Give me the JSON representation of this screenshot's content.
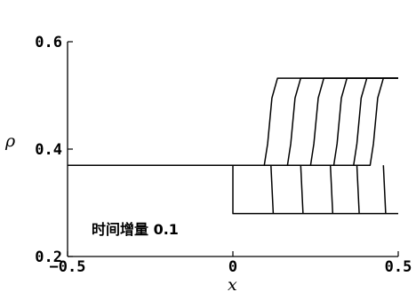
{
  "chart_data": {
    "type": "line",
    "title": "",
    "xlabel": "x",
    "ylabel": "ρ",
    "xlim": [
      -0.5,
      0.5
    ],
    "ylim": [
      0.2,
      0.6
    ],
    "x_ticks": [
      {
        "value": -0.5,
        "label": "−0.5"
      },
      {
        "value": 0,
        "label": "0"
      },
      {
        "value": 0.5,
        "label": "0.5"
      }
    ],
    "y_ticks": [
      {
        "value": 0.2,
        "label": "0.2"
      },
      {
        "value": 0.4,
        "label": "0.4"
      },
      {
        "value": 0.6,
        "label": "0.6"
      }
    ],
    "grid": false,
    "annotation": "时间增量 0.1",
    "series": [
      {
        "points": [
          [
            -0.5,
            0.37
          ],
          [
            0,
            0.37
          ],
          [
            0,
            0.28
          ],
          [
            0.5,
            0.28
          ]
        ]
      },
      {
        "points": [
          [
            -0.5,
            0.37
          ],
          [
            0.095,
            0.37
          ],
          [
            0.105,
            0.41
          ],
          [
            0.118,
            0.495
          ],
          [
            0.135,
            0.532
          ],
          [
            0.5,
            0.532
          ]
        ],
        "lower_front": [
          [
            0.115,
            0.37
          ],
          [
            0.122,
            0.28
          ]
        ]
      },
      {
        "points": [
          [
            -0.5,
            0.37
          ],
          [
            0.165,
            0.37
          ],
          [
            0.175,
            0.41
          ],
          [
            0.188,
            0.495
          ],
          [
            0.205,
            0.532
          ],
          [
            0.5,
            0.532
          ]
        ],
        "lower_front": [
          [
            0.205,
            0.37
          ],
          [
            0.212,
            0.28
          ]
        ]
      },
      {
        "points": [
          [
            -0.5,
            0.37
          ],
          [
            0.235,
            0.37
          ],
          [
            0.245,
            0.41
          ],
          [
            0.258,
            0.495
          ],
          [
            0.275,
            0.532
          ],
          [
            0.5,
            0.532
          ]
        ],
        "lower_front": [
          [
            0.295,
            0.37
          ],
          [
            0.302,
            0.28
          ]
        ]
      },
      {
        "points": [
          [
            -0.5,
            0.37
          ],
          [
            0.305,
            0.37
          ],
          [
            0.315,
            0.41
          ],
          [
            0.328,
            0.495
          ],
          [
            0.345,
            0.532
          ],
          [
            0.5,
            0.532
          ]
        ],
        "lower_front": [
          [
            0.375,
            0.37
          ],
          [
            0.382,
            0.28
          ]
        ]
      },
      {
        "points": [
          [
            -0.5,
            0.37
          ],
          [
            0.365,
            0.37
          ],
          [
            0.375,
            0.41
          ],
          [
            0.388,
            0.495
          ],
          [
            0.405,
            0.532
          ],
          [
            0.5,
            0.532
          ]
        ],
        "lower_front": [
          [
            0.455,
            0.37
          ],
          [
            0.462,
            0.28
          ]
        ]
      },
      {
        "points": [
          [
            -0.5,
            0.37
          ],
          [
            0.415,
            0.37
          ],
          [
            0.425,
            0.41
          ],
          [
            0.438,
            0.495
          ],
          [
            0.455,
            0.532
          ],
          [
            0.5,
            0.532
          ]
        ]
      }
    ]
  }
}
